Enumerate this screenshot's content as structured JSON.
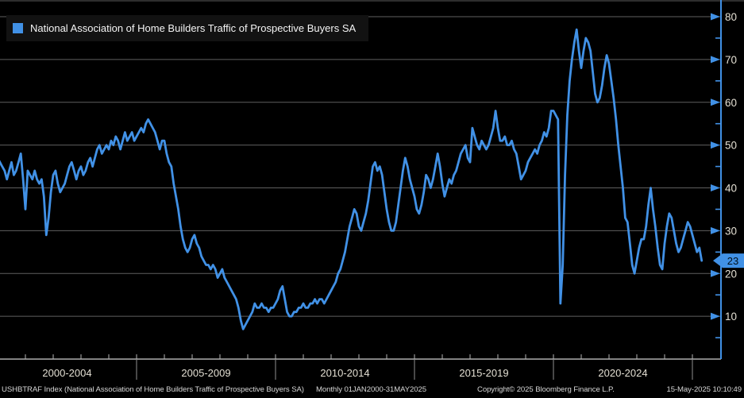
{
  "colors": {
    "accent_blue": "#4191E6",
    "grid": "#5f5f5f",
    "x_axis_line": "#cfcfcf",
    "x_tick": "#b5b5b5",
    "x_separator": "#8f8f8f",
    "axis_label": "#e3dfd3",
    "badge_text": "#00101a",
    "background": "#000000"
  },
  "legend": {
    "label": "National Association of Home Builders Traffic of Prospective Buyers SA"
  },
  "y_axis": {
    "major_ticks": [
      10,
      20,
      30,
      40,
      50,
      60,
      70,
      80
    ],
    "minor_ticks": [
      5,
      15,
      25,
      35,
      45,
      55,
      65,
      75
    ],
    "last_value_label": "23"
  },
  "x_axis": {
    "group_labels": [
      {
        "label": "2000-2004",
        "center_year": 2002.5
      },
      {
        "label": "2005-2009",
        "center_year": 2007.5
      },
      {
        "label": "2010-2014",
        "center_year": 2012.5
      },
      {
        "label": "2015-2019",
        "center_year": 2017.5
      },
      {
        "label": "2020-2024",
        "center_year": 2022.5
      }
    ],
    "separator_years": [
      2005,
      2010,
      2015,
      2020,
      2025
    ],
    "year_tick_start": 2001,
    "year_tick_end": 2025
  },
  "footer": {
    "left": "USHBTRAF Index (National Association of Home Builders Traffic of Prospective Buyers SA)",
    "range": "Monthly 01JAN2000-31MAY2025",
    "copyright": "Copyright© 2025 Bloomberg Finance L.P.",
    "timestamp": "15-May-2025 10:10:49"
  },
  "chart_data": {
    "type": "line",
    "title": "National Association of Home Builders Traffic of Prospective Buyers SA",
    "ticker": "USHBTRAF Index",
    "frequency": "monthly",
    "start_month": "Jan 2000",
    "end_month": "May 2025",
    "ylim": [
      0,
      83
    ],
    "grid": "horizontal-only",
    "legend_position": "top-left",
    "last_value": 23,
    "values": [
      47,
      46,
      45,
      44,
      42,
      44,
      46,
      43,
      44,
      46,
      48,
      42,
      35,
      44,
      43,
      42,
      44,
      42,
      41,
      42,
      38,
      29,
      33,
      39,
      43,
      44,
      41,
      39,
      40,
      41,
      43,
      45,
      46,
      44,
      42,
      44,
      45,
      43,
      44,
      46,
      47,
      45,
      47,
      49,
      50,
      48,
      49,
      50,
      49,
      51,
      50,
      52,
      51,
      49,
      51,
      53,
      51,
      52,
      53,
      51,
      52,
      53,
      54,
      53,
      55,
      56,
      55,
      54,
      53,
      51,
      49,
      51,
      51,
      48,
      46,
      45,
      41,
      38,
      35,
      31,
      28,
      26,
      25,
      26,
      28,
      29,
      27,
      26,
      24,
      23,
      22,
      22,
      21,
      22,
      21,
      19,
      20,
      21,
      19,
      18,
      17,
      16,
      15,
      14,
      12,
      9,
      7,
      8,
      9,
      10,
      11,
      13,
      12,
      12,
      13,
      12,
      12,
      11,
      12,
      12,
      13,
      14,
      16,
      17,
      14,
      11,
      10,
      10,
      11,
      11,
      12,
      12,
      13,
      12,
      12,
      13,
      13,
      14,
      13,
      14,
      14,
      13,
      14,
      15,
      16,
      17,
      18,
      20,
      21,
      23,
      25,
      28,
      31,
      33,
      35,
      34,
      31,
      30,
      32,
      34,
      37,
      41,
      45,
      46,
      44,
      45,
      43,
      39,
      35,
      32,
      30,
      30,
      32,
      36,
      40,
      44,
      47,
      45,
      42,
      40,
      38,
      35,
      34,
      36,
      39,
      43,
      42,
      40,
      42,
      45,
      48,
      45,
      41,
      38,
      40,
      42,
      41,
      43,
      44,
      46,
      48,
      49,
      50,
      47,
      46,
      54,
      52,
      50,
      49,
      51,
      50,
      49,
      50,
      52,
      54,
      58,
      54,
      51,
      51,
      52,
      50,
      50,
      51,
      49,
      48,
      45,
      42,
      43,
      44,
      46,
      47,
      48,
      49,
      48,
      50,
      51,
      53,
      52,
      54,
      58,
      58,
      57,
      56,
      13,
      22,
      43,
      57,
      65,
      70,
      74,
      77,
      72,
      68,
      72,
      75,
      74,
      72,
      67,
      62,
      60,
      61,
      64,
      68,
      71,
      69,
      65,
      61,
      56,
      50,
      45,
      40,
      33,
      32,
      27,
      22,
      20,
      23,
      26,
      28,
      28,
      31,
      36,
      40,
      35,
      31,
      26,
      22,
      21,
      27,
      31,
      34,
      33,
      30,
      27,
      25,
      26,
      28,
      30,
      32,
      31,
      29,
      27,
      25,
      26,
      23
    ]
  }
}
